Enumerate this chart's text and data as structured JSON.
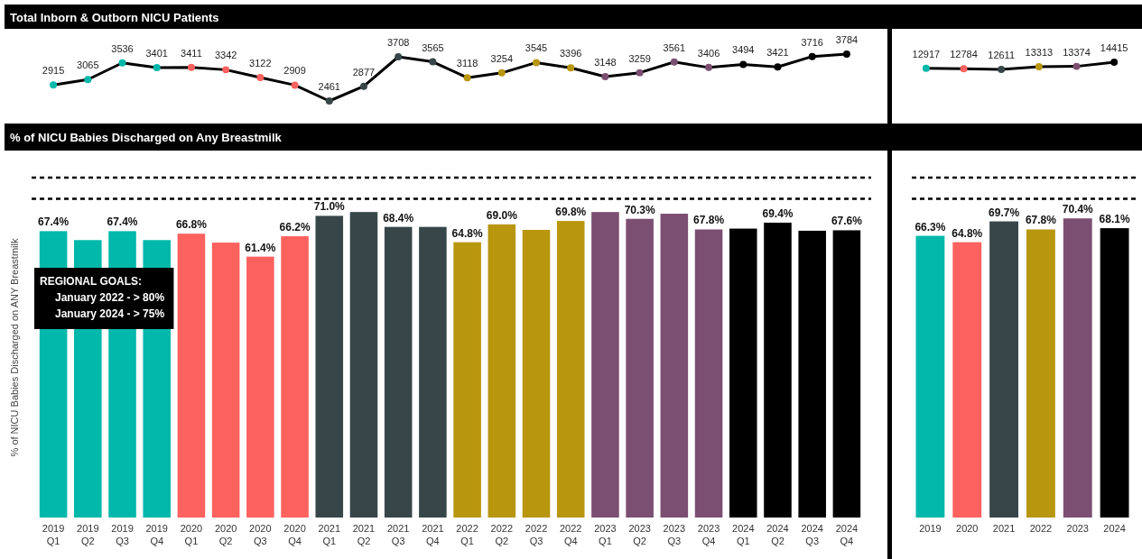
{
  "chart_data": [
    {
      "type": "line",
      "title": "Total Inborn & Outborn NICU Patients",
      "categories": [
        null,
        null,
        null,
        null,
        null,
        null,
        null,
        null,
        null,
        null,
        null,
        null,
        null,
        null,
        null,
        null,
        null,
        null,
        null,
        null,
        null,
        null,
        null,
        null
      ],
      "series": [
        {
          "color": "#000000",
          "colors": [
            "#01b8aa",
            "#01b8aa",
            "#01b8aa",
            "#01b8aa",
            "#fd625e",
            "#fd625e",
            "#fd625e",
            "#fd625e",
            "#374649",
            "#374649",
            "#374649",
            "#374649",
            "#b8960e",
            "#b8960e",
            "#b8960e",
            "#b8960e",
            "#7b4f71",
            "#7b4f71",
            "#7b4f71",
            "#7b4f71",
            "#000000",
            "#000000",
            "#000000",
            "#000000"
          ],
          "values": [
            2915,
            3065,
            3536,
            3401,
            3411,
            3342,
            3122,
            2909,
            2461,
            2877,
            3708,
            3565,
            3118,
            3254,
            3545,
            3396,
            3148,
            3259,
            3561,
            3406,
            3494,
            3421,
            3716,
            3784
          ]
        }
      ],
      "tick_labels": false,
      "marker": "circle",
      "data_labels": true
    },
    {
      "type": "line",
      "categories": [
        null,
        null,
        null,
        null,
        null,
        null
      ],
      "series": [
        {
          "color": "#000000",
          "colors": [
            "#01b8aa",
            "#fd625e",
            "#374649",
            "#b8960e",
            "#7b4f71",
            "#000000"
          ],
          "values": [
            12917,
            12784,
            12611,
            13313,
            13374,
            14415
          ]
        }
      ],
      "tick_labels": false,
      "marker": "circle",
      "data_labels": true
    },
    {
      "type": "bar",
      "title": "% of NICU Babies Discharged on Any Breastmilk",
      "ylabel": "% of NICU Babies Discharged on ANY Breastmilk",
      "categories": [
        "2019 Q1",
        "2019 Q2",
        "2019 Q3",
        "2019 Q4",
        "2020 Q1",
        "2020 Q2",
        "2020 Q3",
        "2020 Q4",
        "2021 Q1",
        "2021 Q2",
        "2021 Q3",
        "2021 Q4",
        "2022 Q1",
        "2022 Q2",
        "2022 Q3",
        "2022 Q4",
        "2023 Q1",
        "2023 Q2",
        "2023 Q3",
        "2023 Q4",
        "2024 Q1",
        "2024 Q2",
        "2024 Q3",
        "2024 Q4"
      ],
      "values": [
        67.4,
        65.3,
        67.4,
        65.3,
        66.8,
        64.7,
        61.4,
        66.2,
        71.0,
        71.9,
        68.4,
        68.4,
        64.8,
        69.0,
        67.7,
        69.8,
        71.9,
        70.3,
        71.5,
        67.8,
        68.0,
        69.4,
        67.5,
        67.6
      ],
      "colors": [
        "#01b8aa",
        "#01b8aa",
        "#01b8aa",
        "#01b8aa",
        "#fd625e",
        "#fd625e",
        "#fd625e",
        "#fd625e",
        "#374649",
        "#374649",
        "#374649",
        "#374649",
        "#b8960e",
        "#b8960e",
        "#b8960e",
        "#b8960e",
        "#7b4f71",
        "#7b4f71",
        "#7b4f71",
        "#7b4f71",
        "#000000",
        "#000000",
        "#000000",
        "#000000"
      ],
      "value_labels": [
        "67.4%",
        null,
        "67.4%",
        null,
        "66.8%",
        null,
        "61.4%",
        "66.2%",
        "71.0%",
        null,
        "68.4%",
        null,
        "64.8%",
        "69.0%",
        null,
        "69.8%",
        null,
        "70.3%",
        null,
        "67.8%",
        null,
        "69.4%",
        null,
        "67.6%"
      ],
      "tick_labels": "x",
      "ref_lines": [
        {
          "axis": "y",
          "value": 80,
          "color": "#000000",
          "line_style": "dashed"
        },
        {
          "axis": "y",
          "value": 75,
          "color": "#000000",
          "line_style": "dashed"
        }
      ],
      "annotations": [
        "REGIONAL GOALS:\nJanuary 2022 - > 80%\nJanuary 2024 - > 75%"
      ]
    },
    {
      "type": "bar",
      "categories": [
        "2019",
        "2020",
        "2021",
        "2022",
        "2023",
        "2024"
      ],
      "values": [
        66.3,
        64.8,
        69.7,
        67.8,
        70.4,
        68.1
      ],
      "colors": [
        "#01b8aa",
        "#fd625e",
        "#374649",
        "#b8960e",
        "#7b4f71",
        "#000000"
      ],
      "value_labels": [
        "66.3%",
        "64.8%",
        "69.7%",
        "67.8%",
        "70.4%",
        "68.1%"
      ],
      "tick_labels": "x",
      "ref_lines": [
        {
          "axis": "y",
          "value": 80,
          "color": "#000000",
          "line_style": "dashed"
        },
        {
          "axis": "y",
          "value": 75,
          "color": "#000000",
          "line_style": "dashed"
        }
      ]
    }
  ]
}
